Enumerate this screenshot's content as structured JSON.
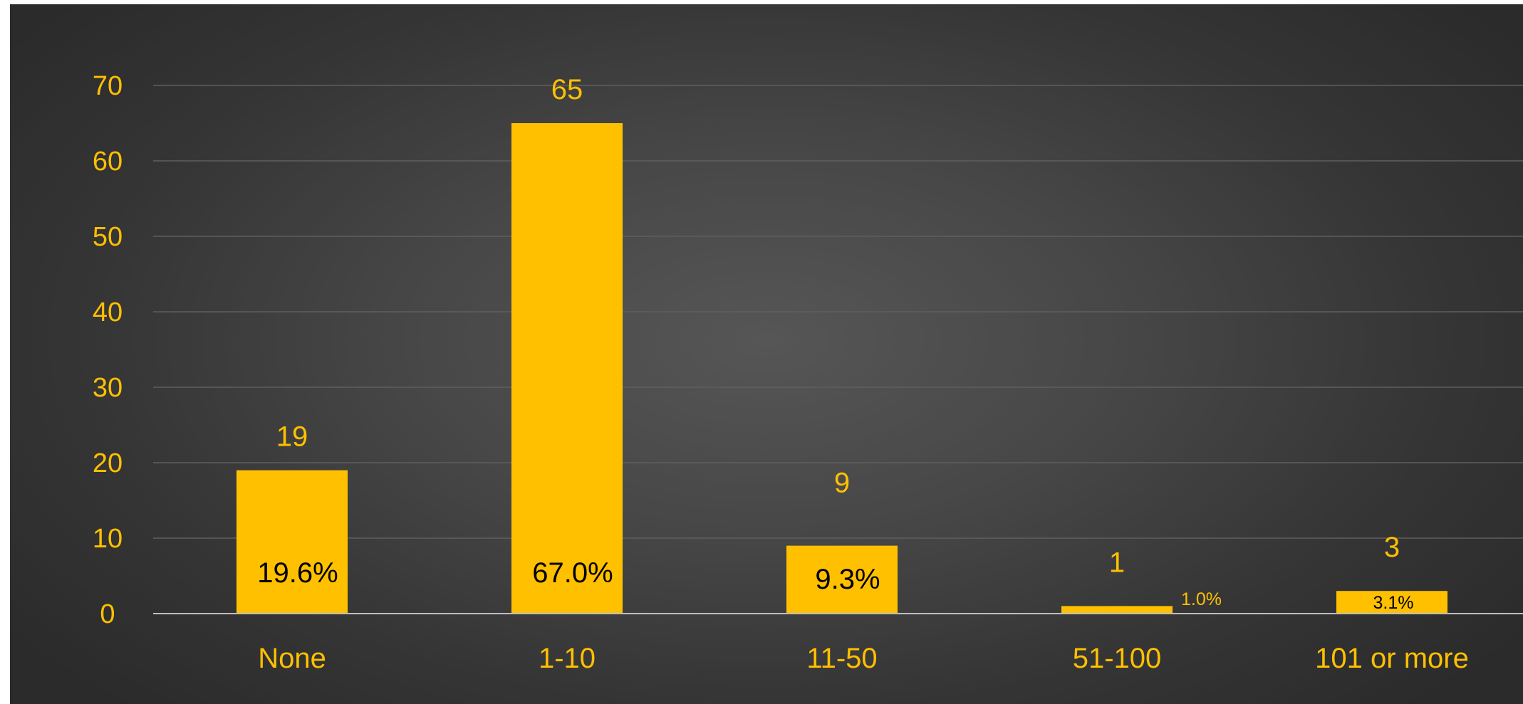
{
  "chart_data": {
    "type": "bar",
    "categories": [
      "None",
      "1-10",
      "11-50",
      "51-100",
      "101 or more"
    ],
    "values": [
      19,
      65,
      9,
      1,
      3
    ],
    "percent_labels": [
      "19.6%",
      "67.0%",
      "9.3%",
      "1.0%",
      "3.1%"
    ],
    "title": "",
    "xlabel": "",
    "ylabel": "",
    "ylim": [
      0,
      70
    ],
    "yticks": [
      0,
      10,
      20,
      30,
      40,
      50,
      60,
      70
    ],
    "grid": true,
    "legend": "none"
  },
  "colors": {
    "bar": "#FFC000",
    "label": "#FFC000",
    "pct_inside": "#000000",
    "gridline": "#5f5f5f",
    "axis": "#bfbfbf"
  }
}
